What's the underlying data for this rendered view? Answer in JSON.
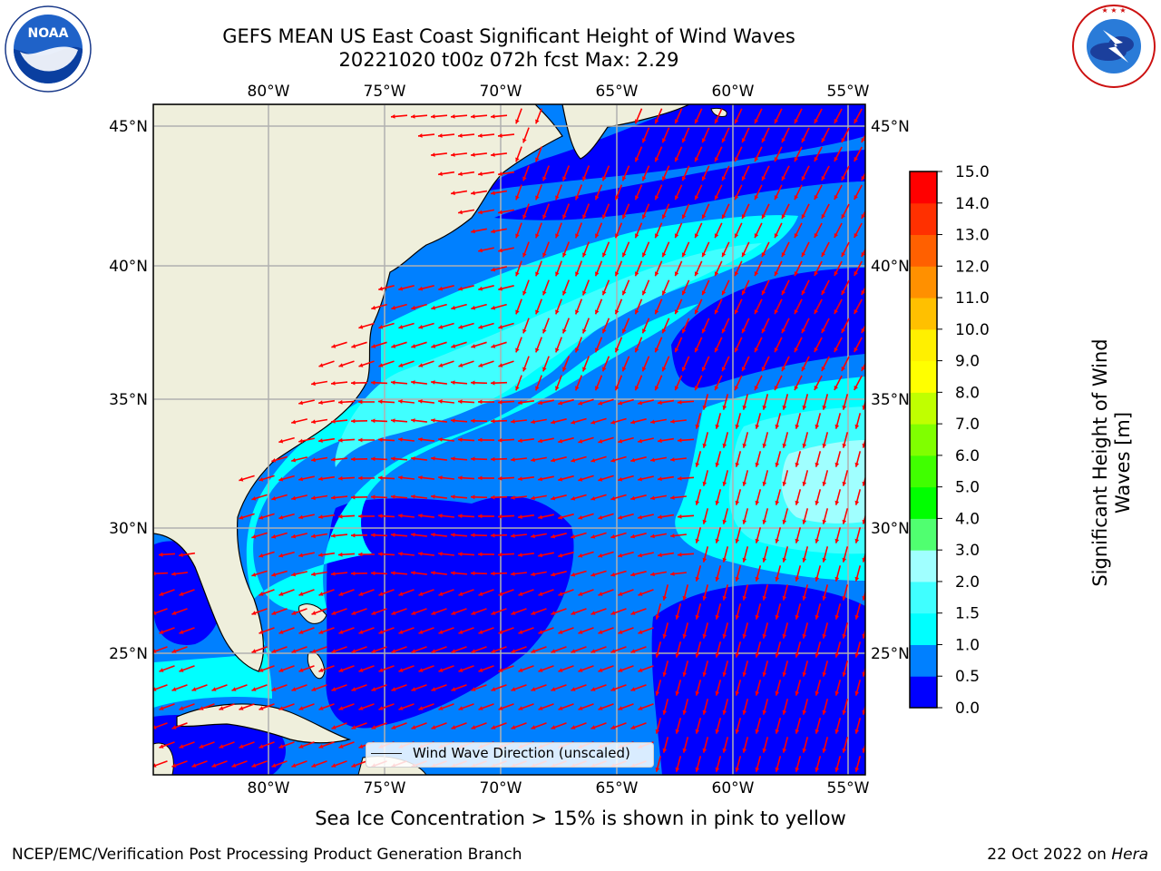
{
  "header": {
    "title_line1": "GEFS MEAN US East Coast Significant Height of Wind Waves",
    "title_line2": "20221020 t00z 072h fcst   Max: 2.29"
  },
  "map": {
    "lon_labels": [
      "80°W",
      "75°W",
      "70°W",
      "65°W",
      "60°W",
      "55°W"
    ],
    "lat_labels": [
      "45°N",
      "40°N",
      "35°N",
      "30°N",
      "25°N"
    ],
    "legend_label": "Wind Wave Direction (unscaled)",
    "land_color": "#efefdc",
    "arrow_color": "#ff0000",
    "gridline_color": "#b0b0b0"
  },
  "colorbar": {
    "label_line1": "Significant Height of Wind",
    "label_line2": "Waves [m]",
    "ticks": [
      "0.0",
      "0.5",
      "1.0",
      "1.5",
      "2.0",
      "3.0",
      "4.0",
      "5.0",
      "6.0",
      "7.0",
      "8.0",
      "9.0",
      "10.0",
      "11.0",
      "12.0",
      "13.0",
      "14.0",
      "15.0"
    ],
    "colors": [
      "#0000ff",
      "#0080ff",
      "#00ffff",
      "#40ffff",
      "#a0ffff",
      "#50ff70",
      "#00ff00",
      "#40ff00",
      "#80ff00",
      "#c0ff00",
      "#ffff00",
      "#fff000",
      "#ffc000",
      "#ff9000",
      "#ff6000",
      "#ff3000",
      "#ff0000"
    ]
  },
  "note": "Sea Ice Concentration > 15% is shown in pink to yellow",
  "footer": {
    "left": "NCEP/EMC/Verification Post Processing Product Generation Branch",
    "right_date": "22 Oct 2022 on ",
    "right_machine": "Hera"
  },
  "logos": {
    "noaa_text": "NOAA",
    "nws_text": "NATIONAL WEATHER SERVICE"
  }
}
